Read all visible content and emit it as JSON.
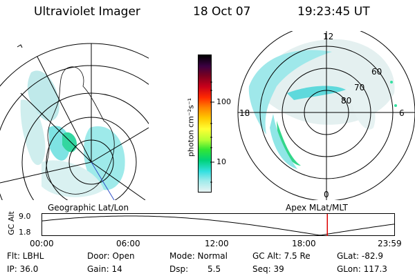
{
  "header": {
    "title": "Ultraviolet Imager",
    "date": "18 Oct 07",
    "time": "19:23:45 UT"
  },
  "colorbar": {
    "unit_label": "photon cm⁻²s⁻¹",
    "ticks": [
      "100",
      "10"
    ],
    "colors": [
      "#000000",
      "#3b0042",
      "#7a0020",
      "#c8001a",
      "#ff2a00",
      "#ff7f00",
      "#ffc800",
      "#ffff33",
      "#b6ff33",
      "#33e633",
      "#00d27a",
      "#33e0e0",
      "#9feaea",
      "#e8f4f4"
    ]
  },
  "geo_panel": {
    "caption": "Geographic Lat/Lon"
  },
  "polar_panel": {
    "caption": "Apex MLat/MLT",
    "mlt_labels": {
      "top": "12",
      "bottom": "0",
      "left": "18",
      "right": "6"
    },
    "lat_labels": [
      "80",
      "70",
      "60"
    ]
  },
  "altitude_plot": {
    "ylabel": "GC Alt",
    "yticks": [
      "9.0",
      "1.8"
    ],
    "xticks": [
      "00:00",
      "06:00",
      "12:00",
      "18:00",
      "23:59"
    ],
    "current_hour": 19.4,
    "marker_color": "#dd0000"
  },
  "status": {
    "filter": "Flt: LBHL",
    "ip": "IP: 36.0",
    "door": "Door: Open",
    "gain": "Gain: 14",
    "mode": "Mode: Normal",
    "dsp": "Dsp:",
    "dsp_value": "5.5",
    "gc_alt": "GC Alt: 7.5 Re",
    "seq": "Seq: 39",
    "glat": "GLat: -82.9",
    "glon": "GLon: 117.3"
  }
}
